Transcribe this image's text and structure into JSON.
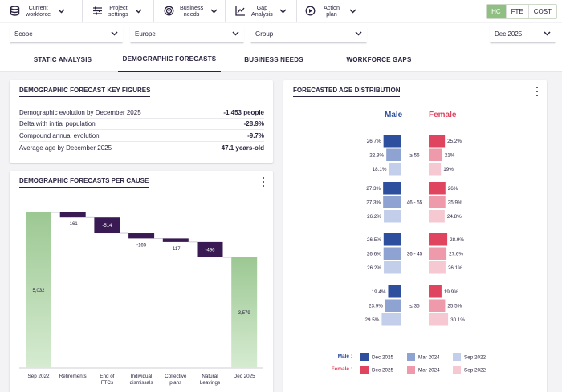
{
  "nav": {
    "items": [
      {
        "label1": "Current",
        "label2": "workforce",
        "icon": "database-icon"
      },
      {
        "label1": "Project",
        "label2": "settings",
        "icon": "sliders-icon"
      },
      {
        "label1": "Business",
        "label2": "needs",
        "icon": "target-icon"
      },
      {
        "label1": "Gap",
        "label2": "Analysis",
        "icon": "chart-icon"
      },
      {
        "label1": "Action plan",
        "label2": "",
        "icon": "play-icon"
      }
    ],
    "toggle": [
      "HC",
      "FTE",
      "COST"
    ],
    "active_toggle": "HC"
  },
  "filters": {
    "scope": "Scope",
    "region": "Europe",
    "group": "Group",
    "date": "Dec 2025"
  },
  "tabs": [
    "STATIC ANALYSIS",
    "DEMOGRAPHIC FORECASTS",
    "BUSINESS NEEDS",
    "WORKFORCE GAPS"
  ],
  "key_figures": {
    "title": "DEMOGRAPHIC FORECAST KEY FIGURES",
    "rows": [
      {
        "label": "Demographic evolution by December 2025",
        "value": "-1,453 people"
      },
      {
        "label": "Delta with initial population",
        "value": "-28.9%"
      },
      {
        "label": "Compound annual evolution",
        "value": "-9.7%"
      },
      {
        "label": "Average age by December 2025",
        "value": "47.1 years-old"
      }
    ]
  },
  "cause": {
    "title": "DEMOGRAPHIC FORECASTS PER CAUSE"
  },
  "age": {
    "title": "FORECASTED AGE DISTRIBUTION",
    "male_label": "Male",
    "female_label": "Female",
    "legend_male": "Male :",
    "legend_female": "Female :",
    "legend_periods": [
      "Dec 2025",
      "Mar 2024",
      "Sep 2022"
    ]
  },
  "colors": {
    "male": [
      "#2e4f9e",
      "#8ea3d2",
      "#c3cfea"
    ],
    "female": [
      "#e04560",
      "#ee9aab",
      "#f6c8d1"
    ],
    "waterfall_total": "#9cc893",
    "waterfall_step": "#3a1a52"
  },
  "chart_data": [
    {
      "type": "waterfall",
      "title": "DEMOGRAPHIC FORECASTS PER CAUSE",
      "categories": [
        "Sep 2022",
        "Retirements",
        "End of FTCs",
        "Individual dismissals",
        "Collective plans",
        "Natural Leavings",
        "Dec 2025"
      ],
      "category_lines": [
        [
          "Sep 2022"
        ],
        [
          "Retirements"
        ],
        [
          "End of",
          "FTCs"
        ],
        [
          "Individual",
          "dismissals"
        ],
        [
          "Collective",
          "plans"
        ],
        [
          "Natural",
          "Leavings"
        ],
        [
          "Dec 2025"
        ]
      ],
      "values": [
        5032,
        -161,
        -514,
        -165,
        -117,
        -496,
        3579
      ],
      "labels": [
        "5,032",
        "-161",
        "-514",
        "-165",
        "-117",
        "-496",
        "3,579"
      ],
      "kinds": [
        "total",
        "delta",
        "delta",
        "delta",
        "delta",
        "delta",
        "total"
      ],
      "ylim": [
        0,
        5032
      ]
    },
    {
      "type": "bar",
      "title": "FORECASTED AGE DISTRIBUTION",
      "groups": [
        "≥ 56",
        "46 - 55",
        "36 - 45",
        "≤ 35"
      ],
      "series": [
        {
          "name": "Male Dec 2025",
          "values": [
            26.7,
            27.3,
            26.5,
            19.4
          ]
        },
        {
          "name": "Male Mar 2024",
          "values": [
            22.3,
            27.3,
            26.6,
            23.9
          ]
        },
        {
          "name": "Male Sep 2022",
          "values": [
            18.1,
            26.2,
            26.2,
            29.5
          ]
        },
        {
          "name": "Female Dec 2025",
          "values": [
            25.2,
            26,
            28.9,
            19.9
          ]
        },
        {
          "name": "Female Mar 2024",
          "values": [
            21,
            25.9,
            27.6,
            25.5
          ]
        },
        {
          "name": "Female Sep 2022",
          "values": [
            19,
            24.8,
            26.1,
            30.1
          ]
        }
      ],
      "male_labels": [
        [
          "26.7%",
          "22.3%",
          "18.1%"
        ],
        [
          "27.3%",
          "27.3%",
          "26.2%"
        ],
        [
          "26.5%",
          "26.6%",
          "26.2%"
        ],
        [
          "19.4%",
          "23.9%",
          "29.5%"
        ]
      ],
      "female_labels": [
        [
          "25.2%",
          "21%",
          "19%"
        ],
        [
          "26%",
          "25.9%",
          "24.8%"
        ],
        [
          "28.9%",
          "27.6%",
          "26.1%"
        ],
        [
          "19.9%",
          "25.5%",
          "30.1%"
        ]
      ]
    }
  ]
}
